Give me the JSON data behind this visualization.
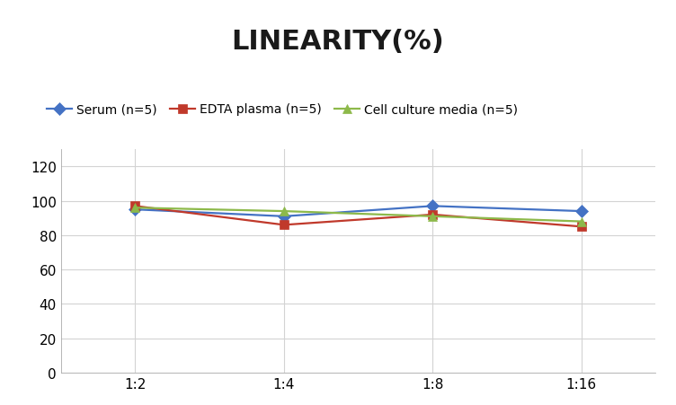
{
  "title": "LINEARITY(%)",
  "title_fontsize": 22,
  "title_fontweight": "bold",
  "x_labels": [
    "1:2",
    "1:4",
    "1:8",
    "1:16"
  ],
  "series": [
    {
      "label": "Serum (n=5)",
      "values": [
        95.0,
        91.0,
        97.0,
        94.0
      ],
      "color": "#4472C4",
      "marker": "D",
      "markersize": 7
    },
    {
      "label": "EDTA plasma (n=5)",
      "values": [
        97.0,
        86.0,
        92.0,
        85.0
      ],
      "color": "#C0392B",
      "marker": "s",
      "markersize": 7
    },
    {
      "label": "Cell culture media (n=5)",
      "values": [
        96.0,
        94.0,
        91.0,
        88.0
      ],
      "color": "#8DB94A",
      "marker": "^",
      "markersize": 7
    }
  ],
  "ylim": [
    0,
    130
  ],
  "yticks": [
    0,
    20,
    40,
    60,
    80,
    100,
    120
  ],
  "grid_color": "#D3D3D3",
  "background_color": "#FFFFFF",
  "legend_fontsize": 10,
  "tick_fontsize": 11,
  "axis_linewidth": 0.6
}
